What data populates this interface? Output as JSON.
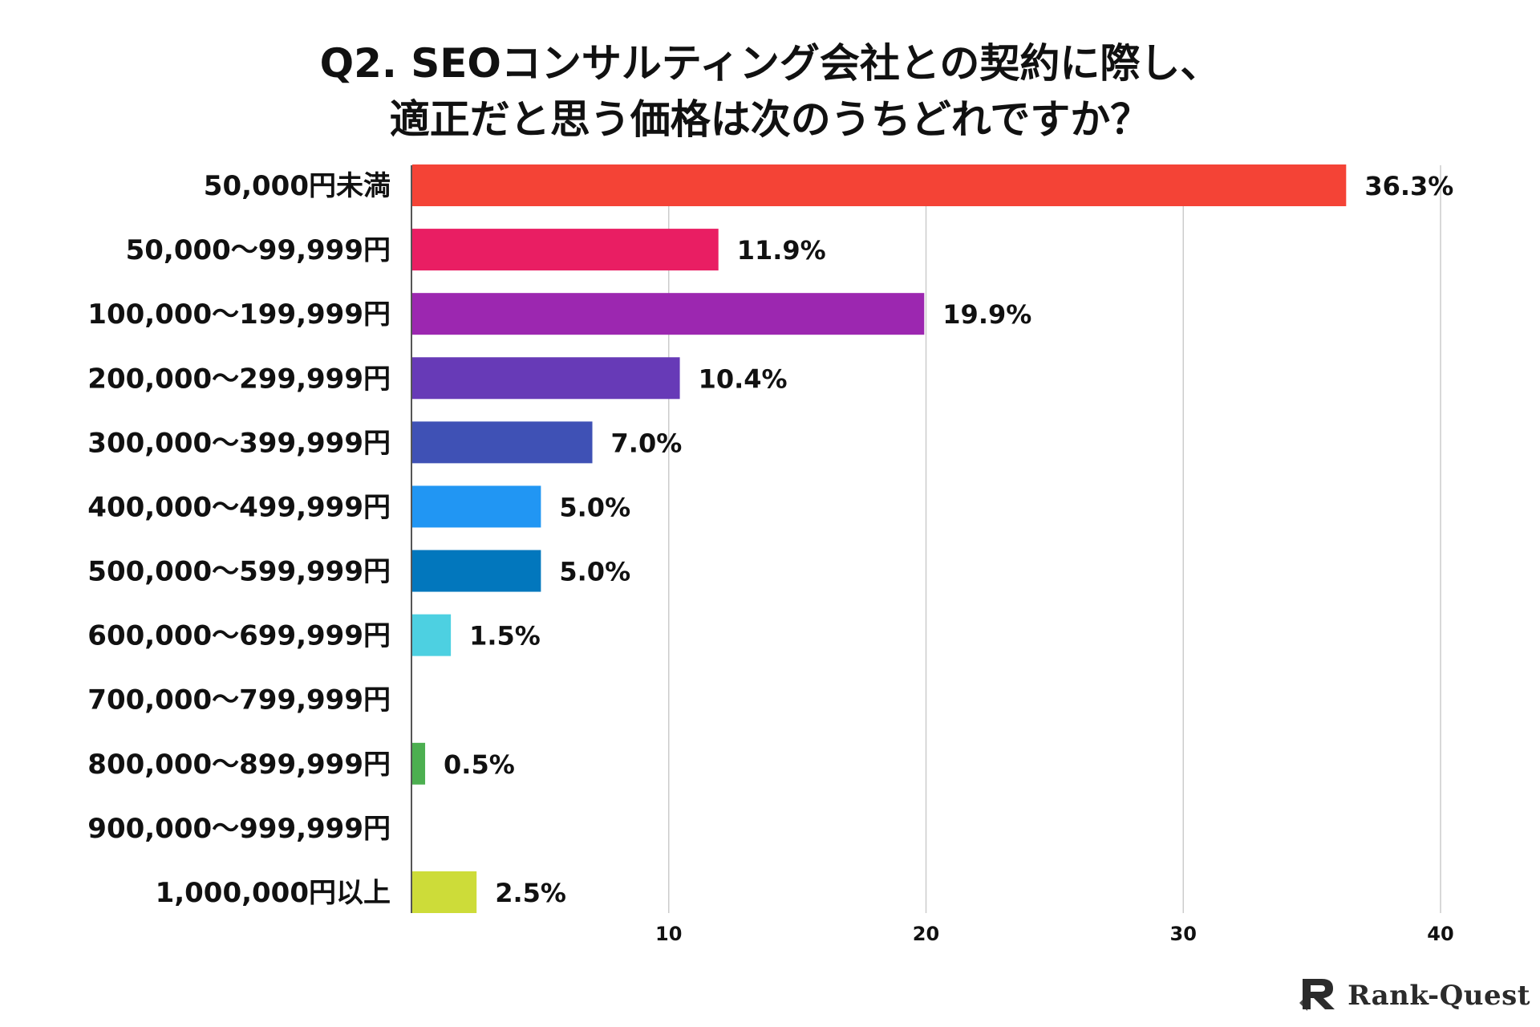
{
  "chart_data": {
    "type": "bar",
    "orientation": "horizontal",
    "title": "Q2. SEOコンサルティング会社との契約に際し、適正だと思う価格は次のうちどれですか？",
    "title_lines": [
      "Q2. SEOコンサルティング会社との契約に際し、",
      "適正だと思う価格は次のうちどれですか？"
    ],
    "xlabel": "",
    "ylabel": "",
    "xlim": [
      0,
      40
    ],
    "xticks": [
      10,
      20,
      30,
      40
    ],
    "grid": true,
    "categories": [
      "50,000円未満",
      "50,000〜99,999円",
      "100,000〜199,999円",
      "200,000〜299,999円",
      "300,000〜399,999円",
      "400,000〜499,999円",
      "500,000〜599,999円",
      "600,000〜699,999円",
      "700,000〜799,999円",
      "800,000〜899,999円",
      "900,000〜999,999円",
      "1,000,000円以上"
    ],
    "values": [
      36.3,
      11.9,
      19.9,
      10.4,
      7.0,
      5.0,
      5.0,
      1.5,
      0,
      0.5,
      0,
      2.5
    ],
    "value_labels": [
      "36.3%",
      "11.9%",
      "19.9%",
      "10.4%",
      "7.0%",
      "5.0%",
      "5.0%",
      "1.5%",
      "",
      "0.5%",
      "",
      "2.5%"
    ],
    "colors": [
      "#f44336",
      "#e91e63",
      "#9c27b0",
      "#673ab7",
      "#3f51b5",
      "#2196f3",
      "#0277bd",
      "#4dd0e1",
      "#26a69a",
      "#4caf50",
      "#8bc34a",
      "#cddc39"
    ]
  },
  "brand": {
    "name": "Rank-Quest",
    "icon": "rank-quest-logo-icon",
    "color": "#2b2b2b"
  }
}
